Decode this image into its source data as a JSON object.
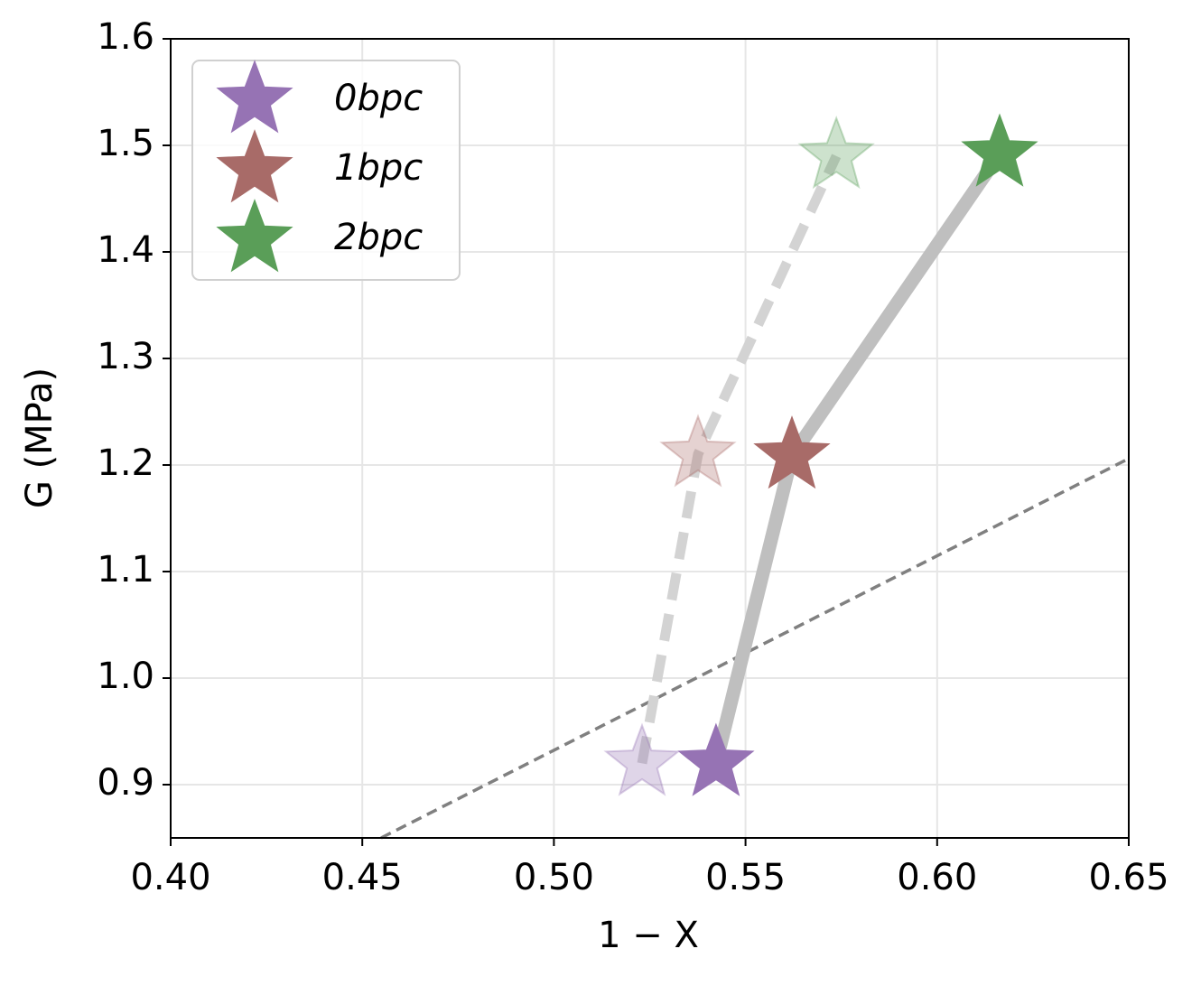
{
  "chart_data": {
    "type": "scatter",
    "xlabel": "1 − X",
    "ylabel": "G (MPa)",
    "xlim": [
      0.4,
      0.65
    ],
    "ylim": [
      0.85,
      1.6
    ],
    "xticks": [
      {
        "value": 0.4,
        "label": "0.40"
      },
      {
        "value": 0.45,
        "label": "0.45"
      },
      {
        "value": 0.5,
        "label": "0.50"
      },
      {
        "value": 0.55,
        "label": "0.55"
      },
      {
        "value": 0.6,
        "label": "0.60"
      },
      {
        "value": 0.65,
        "label": "0.65"
      }
    ],
    "yticks": [
      0.9,
      {
        "value": 1.0,
        "label": "1.0"
      },
      1.1,
      1.2,
      1.3,
      1.4,
      1.5,
      1.6
    ],
    "grid": true,
    "legend": "upper left",
    "series": [
      {
        "name": "0bpc",
        "color": "#9673b4",
        "x": [
          0.523,
          0.5423
        ],
        "y": [
          0.92,
          0.92
        ]
      },
      {
        "name": "1bpc",
        "color": "#a86b68",
        "x": [
          0.5376,
          0.5621
        ],
        "y": [
          1.21,
          1.2085
        ]
      },
      {
        "name": "2bpc",
        "color": "#5a9e58",
        "x": [
          0.5737,
          0.6163
        ],
        "y": [
          1.49,
          1.492
        ]
      }
    ],
    "reference_line": {
      "x": [
        0.4549,
        0.65
      ],
      "y": [
        0.85,
        1.206
      ],
      "color": "#808080"
    }
  }
}
